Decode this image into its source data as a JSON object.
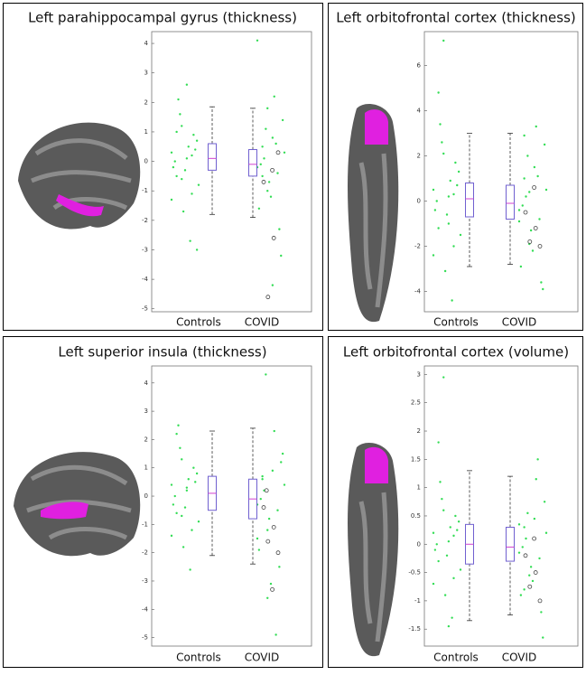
{
  "chart_data": [
    {
      "type": "box",
      "title": "Left parahippocampal gyrus (thickness)",
      "categories": [
        "Controls",
        "COVID"
      ],
      "boxes": [
        {
          "min": -1.8,
          "q1": -0.3,
          "median": 0.1,
          "q3": 0.6,
          "max": 1.85
        },
        {
          "min": -1.9,
          "q1": -0.5,
          "median": -0.1,
          "q3": 0.4,
          "max": 1.8
        }
      ],
      "points": [
        [
          0.3,
          -0.5,
          1.2,
          0.1,
          -1.1,
          0.7,
          -0.2,
          2.1,
          -1.7,
          0.5,
          0.9,
          -0.8,
          0.0,
          1.6,
          -0.3,
          -2.7,
          0.4,
          -1.3,
          1.0,
          -0.6,
          2.6,
          0.2,
          -3.0
        ],
        [
          -0.2,
          0.5,
          -1.0,
          0.8,
          -0.4,
          1.4,
          -1.6,
          0.1,
          -0.7,
          2.2,
          -2.3,
          0.3,
          -0.1,
          1.1,
          -1.2,
          0.6,
          -3.2,
          4.1,
          -0.5,
          1.8,
          -4.2
        ]
      ],
      "outliers": [
        [],
        [
          -0.7,
          -2.6,
          -4.6,
          0.3,
          -0.3
        ]
      ],
      "box_color": "#7060d0",
      "median_color": "#d040d0",
      "point_color": "#33dd55",
      "ylim": [
        -5.1,
        4.4
      ],
      "yticks": [
        -5,
        -4,
        -3,
        -2,
        -1,
        0,
        1,
        2,
        3,
        4
      ]
    },
    {
      "type": "box",
      "title": "Left orbitofrontal cortex (thickness)",
      "categories": [
        "Controls",
        "COVID"
      ],
      "boxes": [
        {
          "min": -2.9,
          "q1": -0.7,
          "median": 0.1,
          "q3": 0.8,
          "max": 3.0
        },
        {
          "min": -2.8,
          "q1": -0.8,
          "median": -0.1,
          "q3": 0.7,
          "max": 3.0
        }
      ],
      "points": [
        [
          0.5,
          -1.2,
          2.1,
          0.2,
          -2.0,
          1.3,
          -0.4,
          3.4,
          -3.1,
          0.9,
          1.7,
          -1.5,
          0.0,
          2.6,
          -0.6,
          -4.4,
          0.7,
          -2.4,
          4.8,
          7.1,
          -1.0,
          0.3
        ],
        [
          -0.4,
          1.0,
          -1.9,
          1.5,
          -0.8,
          2.5,
          -2.9,
          0.2,
          -1.3,
          3.3,
          -3.6,
          0.5,
          -0.2,
          2.0,
          -2.2,
          1.1,
          -3.9,
          -0.9,
          2.9,
          0.4
        ]
      ],
      "outliers": [
        [],
        [
          -0.5,
          -1.2,
          -1.8,
          -2.0,
          0.6
        ]
      ],
      "box_color": "#7060d0",
      "median_color": "#d040d0",
      "point_color": "#33dd55",
      "ylim": [
        -4.9,
        7.5
      ],
      "yticks": [
        -4,
        -2,
        0,
        2,
        4,
        6
      ]
    },
    {
      "type": "box",
      "title": "Left superior insula (thickness)",
      "categories": [
        "Controls",
        "COVID"
      ],
      "boxes": [
        {
          "min": -2.1,
          "q1": -0.5,
          "median": 0.1,
          "q3": 0.7,
          "max": 2.3
        },
        {
          "min": -2.4,
          "q1": -0.8,
          "median": -0.1,
          "q3": 0.6,
          "max": 2.4
        }
      ],
      "points": [
        [
          0.4,
          -0.6,
          1.3,
          0.2,
          -1.2,
          0.8,
          -0.3,
          2.5,
          -1.8,
          0.6,
          1.0,
          -0.9,
          0.0,
          1.7,
          -0.4,
          -2.6,
          0.5,
          -1.4,
          2.2,
          -0.7,
          0.3
        ],
        [
          -0.3,
          0.6,
          -1.2,
          0.9,
          -0.5,
          1.5,
          -1.9,
          0.2,
          -0.8,
          2.3,
          -2.5,
          0.4,
          -0.1,
          4.3,
          -3.1,
          -4.9,
          1.2,
          -1.5,
          0.7,
          -3.6
        ]
      ],
      "outliers": [
        [],
        [
          -0.4,
          -1.1,
          -1.6,
          -2.0,
          -3.3,
          0.2
        ]
      ],
      "box_color": "#7060d0",
      "median_color": "#d040d0",
      "point_color": "#33dd55",
      "ylim": [
        -5.3,
        4.6
      ],
      "yticks": [
        -5,
        -4,
        -3,
        -2,
        -1,
        0,
        1,
        2,
        3,
        4
      ]
    },
    {
      "type": "box",
      "title": "Left orbitofrontal cortex (volume)",
      "categories": [
        "Controls",
        "COVID"
      ],
      "boxes": [
        {
          "min": -1.35,
          "q1": -0.35,
          "median": 0.0,
          "q3": 0.35,
          "max": 1.3
        },
        {
          "min": -1.25,
          "q1": -0.3,
          "median": -0.05,
          "q3": 0.3,
          "max": 1.2
        }
      ],
      "points": [
        [
          0.2,
          -0.3,
          0.6,
          0.05,
          -0.6,
          0.4,
          -0.1,
          1.1,
          -0.9,
          0.3,
          0.5,
          -0.45,
          0.0,
          0.8,
          -0.2,
          -1.3,
          0.25,
          -0.7,
          1.8,
          2.95,
          -1.45,
          0.15
        ],
        [
          -0.15,
          0.3,
          -0.55,
          0.45,
          -0.25,
          0.75,
          -0.9,
          0.1,
          -0.4,
          1.15,
          -1.2,
          0.2,
          -0.05,
          0.55,
          -0.65,
          1.5,
          -1.65,
          0.35,
          -0.8
        ]
      ],
      "outliers": [
        [],
        [
          -0.2,
          -0.5,
          -0.75,
          -1.0,
          0.1
        ]
      ],
      "box_color": "#7060d0",
      "median_color": "#d040d0",
      "point_color": "#33dd55",
      "ylim": [
        -1.8,
        3.15
      ],
      "yticks": [
        -1.5,
        -1,
        -0.5,
        0,
        0.5,
        1,
        1.5,
        2,
        2.5,
        3
      ]
    }
  ]
}
